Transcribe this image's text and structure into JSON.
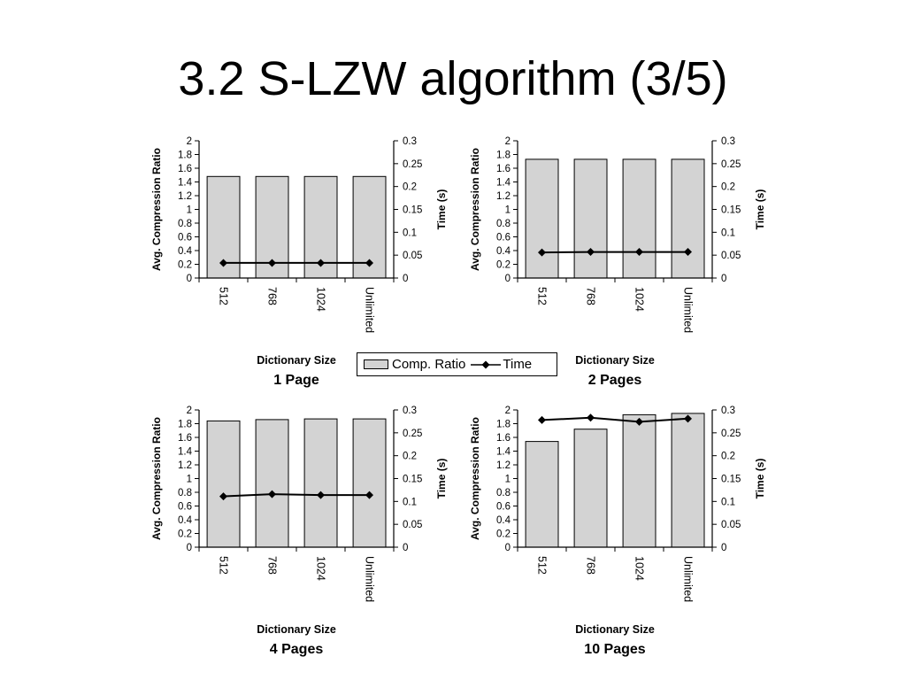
{
  "slide": {
    "title": "3.2 S-LZW algorithm (3/5)"
  },
  "legend": {
    "bar_label": "Comp. Ratio",
    "line_label": "Time"
  },
  "colors": {
    "bar_fill": "#d3d3d3",
    "line": "#000000"
  },
  "chart_data": [
    {
      "type": "bar",
      "title": "1 Page",
      "xlabel": "Dictionary Size",
      "ylabel": "Avg. Compression Ratio",
      "y2label": "Time (s)",
      "categories": [
        "512",
        "768",
        "1024",
        "Unlimited"
      ],
      "ylim": [
        0,
        2
      ],
      "yticks": [
        "0",
        "0.2",
        "0.4",
        "0.6",
        "0.8",
        "1",
        "1.2",
        "1.4",
        "1.6",
        "1.8",
        "2"
      ],
      "y2lim": [
        0,
        0.3
      ],
      "y2ticks": [
        "0",
        "0.05",
        "0.1",
        "0.15",
        "0.2",
        "0.25",
        "0.3"
      ],
      "series": [
        {
          "name": "Comp. Ratio",
          "kind": "bar",
          "axis": "left",
          "values": [
            1.48,
            1.48,
            1.48,
            1.48
          ]
        },
        {
          "name": "Time",
          "kind": "line",
          "axis": "right",
          "values": [
            0.033,
            0.033,
            0.033,
            0.033
          ]
        }
      ]
    },
    {
      "type": "bar",
      "title": "2 Pages",
      "xlabel": "Dictionary Size",
      "ylabel": "Avg. Compression Ratio",
      "y2label": "Time (s)",
      "categories": [
        "512",
        "768",
        "1024",
        "Unlimited"
      ],
      "ylim": [
        0,
        2
      ],
      "yticks": [
        "0",
        "0.2",
        "0.4",
        "0.6",
        "0.8",
        "1",
        "1.2",
        "1.4",
        "1.6",
        "1.8",
        "2"
      ],
      "y2lim": [
        0,
        0.3
      ],
      "y2ticks": [
        "0",
        "0.05",
        "0.1",
        "0.15",
        "0.2",
        "0.25",
        "0.3"
      ],
      "series": [
        {
          "name": "Comp. Ratio",
          "kind": "bar",
          "axis": "left",
          "values": [
            1.73,
            1.73,
            1.73,
            1.73
          ]
        },
        {
          "name": "Time",
          "kind": "line",
          "axis": "right",
          "values": [
            0.056,
            0.057,
            0.057,
            0.057
          ]
        }
      ]
    },
    {
      "type": "bar",
      "title": "4 Pages",
      "xlabel": "Dictionary Size",
      "ylabel": "Avg. Compression Ratio",
      "y2label": "Time (s)",
      "categories": [
        "512",
        "768",
        "1024",
        "Unlimited"
      ],
      "ylim": [
        0,
        2
      ],
      "yticks": [
        "0",
        "0.2",
        "0.4",
        "0.6",
        "0.8",
        "1",
        "1.2",
        "1.4",
        "1.6",
        "1.8",
        "2"
      ],
      "y2lim": [
        0,
        0.3
      ],
      "y2ticks": [
        "0",
        "0.05",
        "0.1",
        "0.15",
        "0.2",
        "0.25",
        "0.3"
      ],
      "series": [
        {
          "name": "Comp. Ratio",
          "kind": "bar",
          "axis": "left",
          "values": [
            1.84,
            1.86,
            1.87,
            1.87
          ]
        },
        {
          "name": "Time",
          "kind": "line",
          "axis": "right",
          "values": [
            0.111,
            0.116,
            0.114,
            0.114
          ]
        }
      ]
    },
    {
      "type": "bar",
      "title": "10 Pages",
      "xlabel": "Dictionary Size",
      "ylabel": "Avg. Compression Ratio",
      "y2label": "Time (s)",
      "categories": [
        "512",
        "768",
        "1024",
        "Unlimited"
      ],
      "ylim": [
        0,
        2
      ],
      "yticks": [
        "0",
        "0.2",
        "0.4",
        "0.6",
        "0.8",
        "1",
        "1.2",
        "1.4",
        "1.6",
        "1.8",
        "2"
      ],
      "y2lim": [
        0,
        0.3
      ],
      "y2ticks": [
        "0",
        "0.05",
        "0.1",
        "0.15",
        "0.2",
        "0.25",
        "0.3"
      ],
      "series": [
        {
          "name": "Comp. Ratio",
          "kind": "bar",
          "axis": "left",
          "values": [
            1.54,
            1.72,
            1.93,
            1.95
          ]
        },
        {
          "name": "Time",
          "kind": "line",
          "axis": "right",
          "values": [
            0.278,
            0.283,
            0.274,
            0.281
          ]
        }
      ]
    }
  ]
}
